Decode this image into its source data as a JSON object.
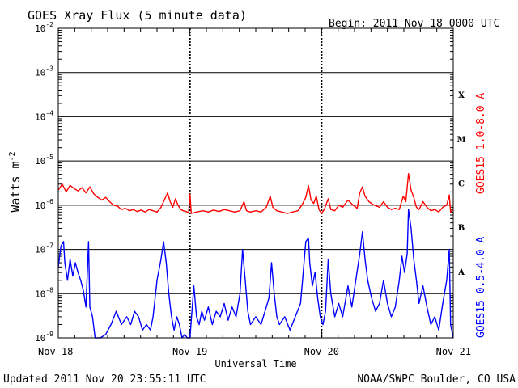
{
  "chart_data": {
    "type": "line",
    "title": "GOES Xray Flux (5 minute data)",
    "begin_label": "Begin:  2011 Nov 18 0000 UTC",
    "ylabel_base": "Watts m",
    "ylabel_exp": "-2",
    "xlabel": "Universal Time",
    "y_scale": "log",
    "ylim": [
      1e-09,
      0.01
    ],
    "y_ticks": [
      {
        "base": "10",
        "exp": "-2",
        "value": 0.01
      },
      {
        "base": "10",
        "exp": "-3",
        "value": 0.001
      },
      {
        "base": "10",
        "exp": "-4",
        "value": 0.0001
      },
      {
        "base": "10",
        "exp": "-5",
        "value": 1e-05
      },
      {
        "base": "10",
        "exp": "-6",
        "value": 1e-06
      },
      {
        "base": "10",
        "exp": "-7",
        "value": 1e-07
      },
      {
        "base": "10",
        "exp": "-8",
        "value": 1e-08
      },
      {
        "base": "10",
        "exp": "-9",
        "value": 1e-09
      }
    ],
    "xlim": [
      0,
      3
    ],
    "x_unit": "days from Nov 18 0000 UTC",
    "x_ticks": [
      {
        "label": "Nov 18",
        "value": 0
      },
      {
        "label": "Nov 19",
        "value": 1
      },
      {
        "label": "Nov 20",
        "value": 2
      },
      {
        "label": "Nov 21",
        "value": 3
      }
    ],
    "flare_classes": [
      {
        "label": "X",
        "value": 0.000316
      },
      {
        "label": "M",
        "value": 3.16e-05
      },
      {
        "label": "C",
        "value": 3.16e-06
      },
      {
        "label": "B",
        "value": 3.16e-07
      },
      {
        "label": "A",
        "value": 3.16e-08
      }
    ],
    "series": [
      {
        "name": "GOES15 1.0-8.0 A",
        "color": "#ff0000",
        "points": [
          [
            0.0,
            2.2e-06
          ],
          [
            0.03,
            3e-06
          ],
          [
            0.06,
            2e-06
          ],
          [
            0.09,
            2.8e-06
          ],
          [
            0.12,
            2.4e-06
          ],
          [
            0.15,
            2.1e-06
          ],
          [
            0.18,
            2.5e-06
          ],
          [
            0.21,
            1.9e-06
          ],
          [
            0.24,
            2.6e-06
          ],
          [
            0.27,
            1.8e-06
          ],
          [
            0.3,
            1.5e-06
          ],
          [
            0.33,
            1.3e-06
          ],
          [
            0.36,
            1.5e-06
          ],
          [
            0.39,
            1.2e-06
          ],
          [
            0.42,
            1e-06
          ],
          [
            0.45,
            9.5e-07
          ],
          [
            0.48,
            8e-07
          ],
          [
            0.51,
            8.5e-07
          ],
          [
            0.54,
            7.5e-07
          ],
          [
            0.57,
            8e-07
          ],
          [
            0.6,
            7.2e-07
          ],
          [
            0.63,
            7.8e-07
          ],
          [
            0.66,
            7e-07
          ],
          [
            0.69,
            8e-07
          ],
          [
            0.72,
            7.5e-07
          ],
          [
            0.75,
            7e-07
          ],
          [
            0.78,
            9e-07
          ],
          [
            0.8,
            1.2e-06
          ],
          [
            0.83,
            1.9e-06
          ],
          [
            0.85,
            1.2e-06
          ],
          [
            0.87,
            9e-07
          ],
          [
            0.89,
            1.4e-06
          ],
          [
            0.91,
            1e-06
          ],
          [
            0.93,
            8e-07
          ],
          [
            0.95,
            7.5e-07
          ],
          [
            0.97,
            7.2e-07
          ],
          [
            0.99,
            6.8e-07
          ],
          [
            1.0,
            1.8e-06
          ],
          [
            1.01,
            6.5e-07
          ],
          [
            1.05,
            7e-07
          ],
          [
            1.1,
            7.5e-07
          ],
          [
            1.14,
            7e-07
          ],
          [
            1.18,
            7.8e-07
          ],
          [
            1.22,
            7.2e-07
          ],
          [
            1.26,
            8e-07
          ],
          [
            1.3,
            7.5e-07
          ],
          [
            1.34,
            7e-07
          ],
          [
            1.38,
            7.5e-07
          ],
          [
            1.41,
            1.2e-06
          ],
          [
            1.43,
            7.5e-07
          ],
          [
            1.46,
            7e-07
          ],
          [
            1.5,
            7.5e-07
          ],
          [
            1.54,
            7e-07
          ],
          [
            1.58,
            9e-07
          ],
          [
            1.61,
            1.6e-06
          ],
          [
            1.63,
            9e-07
          ],
          [
            1.66,
            7.5e-07
          ],
          [
            1.7,
            7e-07
          ],
          [
            1.74,
            6.5e-07
          ],
          [
            1.78,
            7e-07
          ],
          [
            1.82,
            7.5e-07
          ],
          [
            1.85,
            1e-06
          ],
          [
            1.88,
            1.5e-06
          ],
          [
            1.9,
            2.8e-06
          ],
          [
            1.92,
            1.3e-06
          ],
          [
            1.94,
            1.1e-06
          ],
          [
            1.96,
            1.6e-06
          ],
          [
            1.98,
            8e-07
          ],
          [
            2.0,
            6.5e-07
          ],
          [
            2.02,
            8e-07
          ],
          [
            2.05,
            1.4e-06
          ],
          [
            2.07,
            8e-07
          ],
          [
            2.1,
            7.5e-07
          ],
          [
            2.13,
            1e-06
          ],
          [
            2.16,
            9e-07
          ],
          [
            2.2,
            1.3e-06
          ],
          [
            2.24,
            1e-06
          ],
          [
            2.27,
            8.5e-07
          ],
          [
            2.29,
            1.9e-06
          ],
          [
            2.31,
            2.6e-06
          ],
          [
            2.33,
            1.6e-06
          ],
          [
            2.36,
            1.2e-06
          ],
          [
            2.4,
            1e-06
          ],
          [
            2.44,
            9e-07
          ],
          [
            2.47,
            1.2e-06
          ],
          [
            2.5,
            9e-07
          ],
          [
            2.53,
            8e-07
          ],
          [
            2.56,
            8.5e-07
          ],
          [
            2.59,
            8e-07
          ],
          [
            2.62,
            1.6e-06
          ],
          [
            2.64,
            1.2e-06
          ],
          [
            2.66,
            5.2e-06
          ],
          [
            2.68,
            2.2e-06
          ],
          [
            2.7,
            1.5e-06
          ],
          [
            2.72,
            9e-07
          ],
          [
            2.74,
            8e-07
          ],
          [
            2.77,
            1.2e-06
          ],
          [
            2.8,
            9e-07
          ],
          [
            2.83,
            7.5e-07
          ],
          [
            2.86,
            8e-07
          ],
          [
            2.89,
            7e-07
          ],
          [
            2.92,
            9e-07
          ],
          [
            2.95,
            1e-06
          ],
          [
            2.97,
            1.7e-06
          ],
          [
            2.98,
            7e-07
          ],
          [
            3.0,
            8e-07
          ]
        ]
      },
      {
        "name": "GOES15 0.5-4.0 A",
        "color": "#0000ff",
        "points": [
          [
            0.0,
            4e-08
          ],
          [
            0.02,
            1.2e-07
          ],
          [
            0.04,
            1.5e-07
          ],
          [
            0.05,
            5e-08
          ],
          [
            0.07,
            2e-08
          ],
          [
            0.09,
            6e-08
          ],
          [
            0.11,
            2.5e-08
          ],
          [
            0.13,
            5e-08
          ],
          [
            0.15,
            3e-08
          ],
          [
            0.17,
            2e-08
          ],
          [
            0.19,
            1.2e-08
          ],
          [
            0.21,
            5e-09
          ],
          [
            0.23,
            1.5e-07
          ],
          [
            0.24,
            5e-09
          ],
          [
            0.26,
            3e-09
          ],
          [
            0.28,
            1e-09
          ],
          [
            0.32,
            1e-09
          ],
          [
            0.36,
            1.2e-09
          ],
          [
            0.4,
            2e-09
          ],
          [
            0.44,
            4e-09
          ],
          [
            0.48,
            2e-09
          ],
          [
            0.52,
            3e-09
          ],
          [
            0.55,
            2e-09
          ],
          [
            0.58,
            4e-09
          ],
          [
            0.61,
            3e-09
          ],
          [
            0.64,
            1.5e-09
          ],
          [
            0.67,
            2e-09
          ],
          [
            0.7,
            1.5e-09
          ],
          [
            0.72,
            3e-09
          ],
          [
            0.75,
            2e-08
          ],
          [
            0.78,
            6e-08
          ],
          [
            0.8,
            1.5e-07
          ],
          [
            0.82,
            5e-08
          ],
          [
            0.84,
            1e-08
          ],
          [
            0.86,
            3e-09
          ],
          [
            0.88,
            1.5e-09
          ],
          [
            0.9,
            3e-09
          ],
          [
            0.92,
            2e-09
          ],
          [
            0.94,
            1e-09
          ],
          [
            0.96,
            1.2e-09
          ],
          [
            0.98,
            1e-09
          ],
          [
            1.0,
            1e-09
          ],
          [
            1.03,
            1.5e-08
          ],
          [
            1.05,
            3e-09
          ],
          [
            1.07,
            2e-09
          ],
          [
            1.09,
            4e-09
          ],
          [
            1.11,
            2.5e-09
          ],
          [
            1.14,
            5e-09
          ],
          [
            1.17,
            2e-09
          ],
          [
            1.2,
            4e-09
          ],
          [
            1.23,
            3e-09
          ],
          [
            1.26,
            6e-09
          ],
          [
            1.29,
            2.5e-09
          ],
          [
            1.32,
            5e-09
          ],
          [
            1.35,
            3e-09
          ],
          [
            1.38,
            1e-08
          ],
          [
            1.4,
            1e-07
          ],
          [
            1.42,
            2e-08
          ],
          [
            1.44,
            4e-09
          ],
          [
            1.46,
            2e-09
          ],
          [
            1.5,
            3e-09
          ],
          [
            1.54,
            2e-09
          ],
          [
            1.57,
            4e-09
          ],
          [
            1.6,
            8e-09
          ],
          [
            1.62,
            5e-08
          ],
          [
            1.64,
            1e-08
          ],
          [
            1.66,
            3e-09
          ],
          [
            1.68,
            2e-09
          ],
          [
            1.72,
            3e-09
          ],
          [
            1.76,
            1.5e-09
          ],
          [
            1.8,
            3e-09
          ],
          [
            1.84,
            6e-09
          ],
          [
            1.86,
            3e-08
          ],
          [
            1.88,
            1.5e-07
          ],
          [
            1.9,
            1.8e-07
          ],
          [
            1.91,
            5e-08
          ],
          [
            1.93,
            1.5e-08
          ],
          [
            1.95,
            3e-08
          ],
          [
            1.97,
            8e-09
          ],
          [
            1.99,
            3e-09
          ],
          [
            2.01,
            2e-09
          ],
          [
            2.03,
            4e-09
          ],
          [
            2.05,
            6e-08
          ],
          [
            2.07,
            1e-08
          ],
          [
            2.1,
            3e-09
          ],
          [
            2.13,
            6e-09
          ],
          [
            2.16,
            3e-09
          ],
          [
            2.2,
            1.5e-08
          ],
          [
            2.23,
            5e-09
          ],
          [
            2.26,
            2e-08
          ],
          [
            2.29,
            8e-08
          ],
          [
            2.31,
            2.5e-07
          ],
          [
            2.33,
            6e-08
          ],
          [
            2.35,
            2e-08
          ],
          [
            2.38,
            8e-09
          ],
          [
            2.41,
            4e-09
          ],
          [
            2.44,
            6e-09
          ],
          [
            2.47,
            2e-08
          ],
          [
            2.5,
            6e-09
          ],
          [
            2.53,
            3e-09
          ],
          [
            2.56,
            5e-09
          ],
          [
            2.59,
            2e-08
          ],
          [
            2.61,
            7e-08
          ],
          [
            2.63,
            3e-08
          ],
          [
            2.65,
            8e-08
          ],
          [
            2.66,
            8e-07
          ],
          [
            2.68,
            3e-07
          ],
          [
            2.7,
            6e-08
          ],
          [
            2.72,
            2e-08
          ],
          [
            2.74,
            6e-09
          ],
          [
            2.77,
            1.5e-08
          ],
          [
            2.8,
            5e-09
          ],
          [
            2.83,
            2e-09
          ],
          [
            2.86,
            3e-09
          ],
          [
            2.89,
            1.5e-09
          ],
          [
            2.92,
            6e-09
          ],
          [
            2.95,
            2e-08
          ],
          [
            2.97,
            1e-07
          ],
          [
            2.98,
            2e-09
          ],
          [
            3.0,
            1e-09
          ]
        ]
      }
    ]
  },
  "footer": {
    "updated": "Updated 2011 Nov 20 23:55:11 UTC",
    "credit": "NOAA/SWPC Boulder, CO USA"
  }
}
